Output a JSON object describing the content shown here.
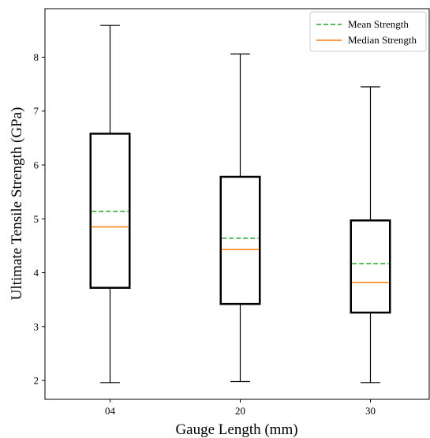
{
  "chart_data": {
    "type": "boxplot",
    "title": "",
    "xlabel": "Gauge Length (mm)",
    "ylabel": "Ultimate Tensile Strength (GPa)",
    "ylim": [
      1.65,
      8.9
    ],
    "yticks": [
      2,
      3,
      4,
      5,
      6,
      7,
      8
    ],
    "grid": false,
    "legend_position": "top-right",
    "categories": [
      "04",
      "20",
      "30"
    ],
    "boxes": [
      {
        "category": "04",
        "whisker_low": 1.96,
        "q1": 3.72,
        "median": 4.85,
        "mean": 5.14,
        "q3": 6.58,
        "whisker_high": 8.59
      },
      {
        "category": "20",
        "whisker_low": 1.98,
        "q1": 3.42,
        "median": 4.43,
        "mean": 4.64,
        "q3": 5.78,
        "whisker_high": 8.06
      },
      {
        "category": "30",
        "whisker_low": 1.96,
        "q1": 3.26,
        "median": 3.82,
        "mean": 4.17,
        "q3": 4.97,
        "whisker_high": 7.45
      }
    ],
    "legend": [
      {
        "label": "Mean Strength",
        "color": "#2ca02c",
        "style": "dashed"
      },
      {
        "label": "Median Strength",
        "color": "#ff7f0e",
        "style": "solid"
      }
    ],
    "colors": {
      "box": "#000000",
      "mean": "#2ca02c",
      "median": "#ff7f0e"
    }
  }
}
